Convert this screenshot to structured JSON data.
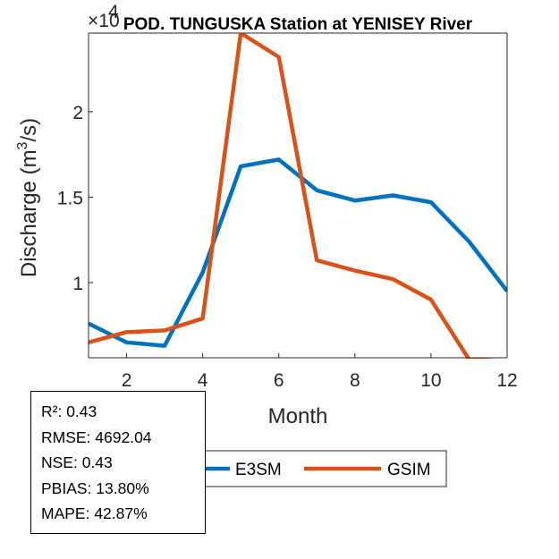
{
  "chart_data": {
    "type": "line",
    "title": "POD. TUNGUSKA  Station at  YENISEY  River",
    "xlabel": "Month",
    "ylabel": "Discharge (m³/s)",
    "ylabel_main": "Discharge (m",
    "ylabel_sup": "3",
    "ylabel_tail": "/s)",
    "exponent_base": "×10",
    "exponent_power": "4",
    "xlim": [
      1,
      12
    ],
    "ylim": [
      0.56,
      2.46
    ],
    "y_scale_factor": 10000,
    "xticks": [
      2,
      4,
      6,
      8,
      10,
      12
    ],
    "yticks": [
      1,
      1.5,
      2
    ],
    "ytick_labels": [
      "1",
      "1.5",
      "2"
    ],
    "grid": false,
    "legend_placement": "bottom",
    "x": [
      1,
      2,
      3,
      4,
      5,
      6,
      7,
      8,
      9,
      10,
      11,
      12
    ],
    "series": [
      {
        "name": "E3SM",
        "color": "#0072BD",
        "values": [
          0.76,
          0.65,
          0.63,
          1.06,
          1.68,
          1.72,
          1.54,
          1.48,
          1.51,
          1.47,
          1.24,
          0.95
        ]
      },
      {
        "name": "GSIM",
        "color": "#D95319",
        "values": [
          0.65,
          0.71,
          0.72,
          0.79,
          2.46,
          2.32,
          1.13,
          1.07,
          1.02,
          0.9,
          0.55,
          0.54
        ]
      }
    ]
  },
  "stats": {
    "r2": "R²: 0.43",
    "rmse": "RMSE: 4692.04",
    "nse": "NSE: 0.43",
    "pbias": "PBIAS: 13.80%",
    "mape": "MAPE: 42.87%"
  }
}
